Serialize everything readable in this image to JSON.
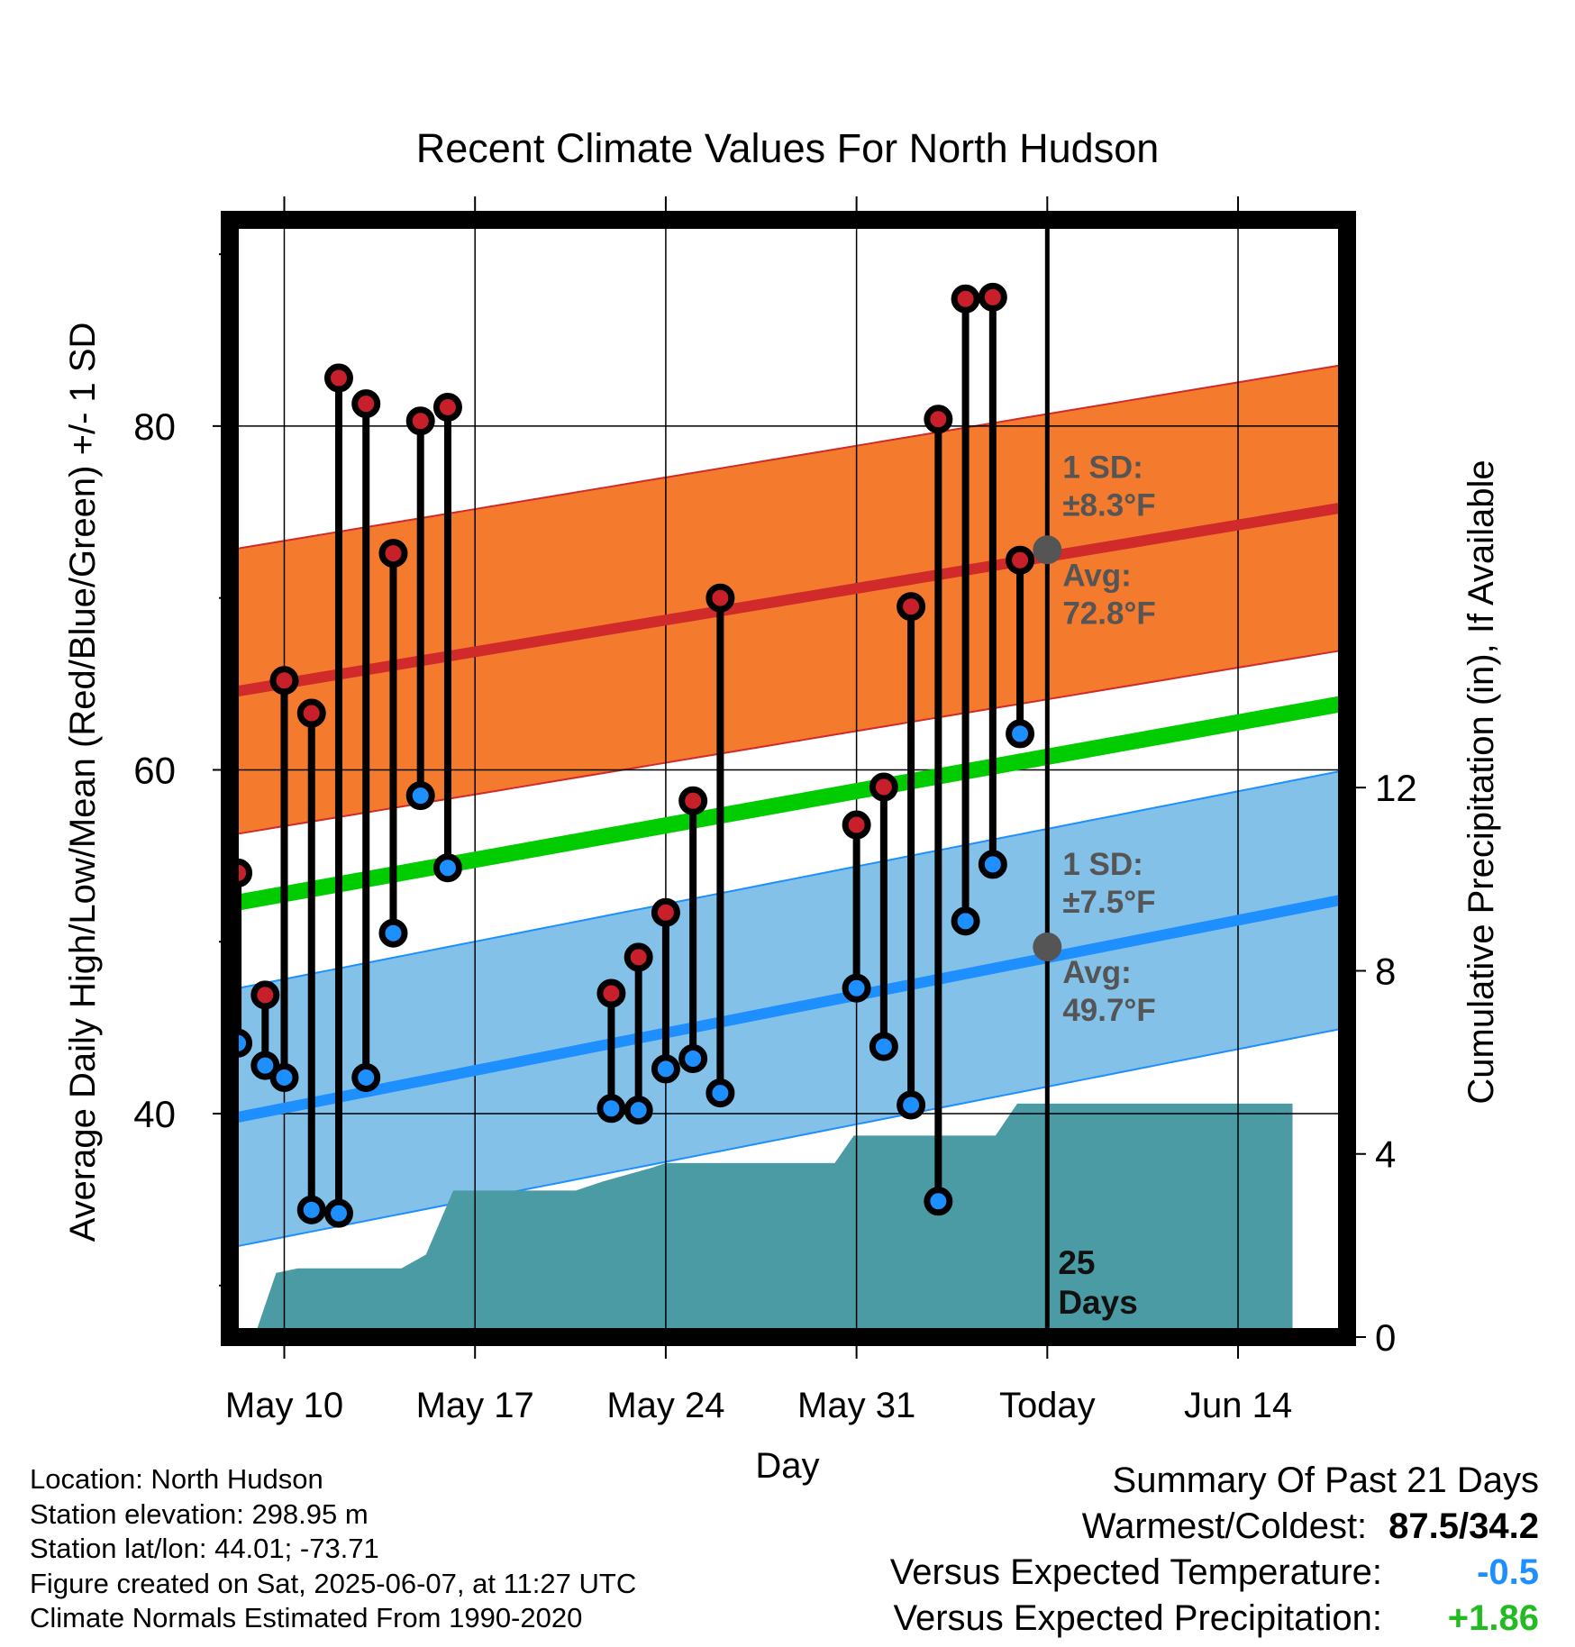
{
  "chart_data": {
    "type": "line",
    "title": "Recent Climate Values For North Hudson",
    "xlabel": "Day",
    "ylabel": "Average Daily High/Low/Mean (Red/Blue/Green) +/- 1 SD",
    "y2label": "Cumulative Precipitation (in), If Available",
    "x_range_days_from_today": [
      -30,
      11
    ],
    "ylim": [
      27,
      92
    ],
    "y2lim": [
      0,
      24.4
    ],
    "yticks": [
      "40",
      "60",
      "80"
    ],
    "y_tick_values": [
      40,
      60,
      80
    ],
    "y2ticks": [
      "0",
      "4",
      "8",
      "12"
    ],
    "y2_tick_values": [
      0,
      4,
      8,
      12
    ],
    "xticks": [
      {
        "label": "May 10",
        "day": -28
      },
      {
        "label": "May 17",
        "day": -21
      },
      {
        "label": "May 24",
        "day": -14
      },
      {
        "label": "May 31",
        "day": -7
      },
      {
        "label": "Today",
        "day": 0
      },
      {
        "label": "Jun 14",
        "day": 7
      }
    ],
    "grid": true,
    "normals": {
      "high_avg": {
        "start": 64.5,
        "end": 75.3,
        "color": "#d12a2a"
      },
      "high_sd": 8.3,
      "high_band_color": "#f47a2e",
      "mean": {
        "start": 52.2,
        "end": 63.9,
        "color": "#00cc00"
      },
      "low_avg": {
        "start": 39.7,
        "end": 52.5,
        "color": "#1e8fff"
      },
      "low_sd": 7.5,
      "low_band_color": "#84c1e8"
    },
    "today_markers": [
      {
        "label_1": "1 SD:",
        "label_2": "±8.3°F",
        "label_3": "Avg:",
        "label_4": "72.8°F",
        "value": 72.8
      },
      {
        "label_1": "1 SD:",
        "label_2": "±7.5°F",
        "label_3": "Avg:",
        "label_4": "49.7°F",
        "value": 49.7
      }
    ],
    "today_label": "25\nDays",
    "series": [
      {
        "name": "High",
        "color": "#c8202a",
        "points": [
          [
            -29.7,
            54.0
          ],
          [
            -28.7,
            46.9
          ],
          [
            -28.0,
            65.2
          ],
          [
            -27.0,
            63.3
          ],
          [
            -26.0,
            82.8
          ],
          [
            -25.0,
            81.3
          ],
          [
            -24.0,
            72.6
          ],
          [
            -23.0,
            80.3
          ],
          [
            -22.0,
            81.1
          ],
          [
            -16.0,
            47.0
          ],
          [
            -15.0,
            49.1
          ],
          [
            -14.0,
            51.7
          ],
          [
            -13.0,
            58.2
          ],
          [
            -12.0,
            70.0
          ],
          [
            -7.0,
            56.8
          ],
          [
            -6.0,
            59.0
          ],
          [
            -5.0,
            69.5
          ],
          [
            -4.0,
            80.4
          ],
          [
            -3.0,
            87.4
          ],
          [
            -2.0,
            87.5
          ],
          [
            -1.0,
            72.2
          ]
        ]
      },
      {
        "name": "Low",
        "color": "#1e8fff",
        "points": [
          [
            -29.7,
            44.1
          ],
          [
            -28.7,
            42.8
          ],
          [
            -28.0,
            42.1
          ],
          [
            -27.0,
            34.4
          ],
          [
            -26.0,
            34.2
          ],
          [
            -25.0,
            42.1
          ],
          [
            -24.0,
            50.5
          ],
          [
            -23.0,
            58.5
          ],
          [
            -22.0,
            54.3
          ],
          [
            -16.0,
            40.3
          ],
          [
            -15.0,
            40.2
          ],
          [
            -14.0,
            42.6
          ],
          [
            -13.0,
            43.2
          ],
          [
            -12.0,
            41.2
          ],
          [
            -7.0,
            47.3
          ],
          [
            -6.0,
            43.9
          ],
          [
            -5.0,
            40.5
          ],
          [
            -4.0,
            34.9
          ],
          [
            -3.0,
            51.2
          ],
          [
            -2.0,
            54.5
          ],
          [
            -1.0,
            62.1
          ]
        ]
      },
      {
        "name": "Cumulative Precipitation",
        "color": "#4a9ba4",
        "axis": "right",
        "steps": [
          [
            -30.0,
            0.0
          ],
          [
            -29.1,
            0.0
          ],
          [
            -28.3,
            1.4
          ],
          [
            -27.5,
            1.5
          ],
          [
            -23.7,
            1.5
          ],
          [
            -22.8,
            1.8
          ],
          [
            -21.8,
            3.2
          ],
          [
            -17.3,
            3.2
          ],
          [
            -16.3,
            3.4
          ],
          [
            -14.5,
            3.7
          ],
          [
            -14.0,
            3.8
          ],
          [
            -7.8,
            3.8
          ],
          [
            -7.1,
            4.4
          ],
          [
            -1.9,
            4.4
          ],
          [
            -1.1,
            5.1
          ],
          [
            9.0,
            5.1
          ]
        ]
      }
    ]
  },
  "info": {
    "location": "Location: North Hudson",
    "elevation": "Station elevation: 298.95 m",
    "latlon": "Station lat/lon: 44.01; -73.71",
    "created": "Figure created on Sat, 2025-06-07, at 11:27 UTC",
    "normals": "Climate Normals Estimated From 1990-2020"
  },
  "summary": {
    "title": "Summary Of Past 21 Days",
    "warm_cold_label": "Warmest/Coldest:",
    "warm_cold_value": "87.5/34.2",
    "temp_label": "Versus Expected Temperature:",
    "temp_value": "-0.5",
    "temp_color": "#1e8fff",
    "precip_label": "Versus Expected Precipitation:",
    "precip_value": "+1.86",
    "precip_color": "#22bb22"
  }
}
